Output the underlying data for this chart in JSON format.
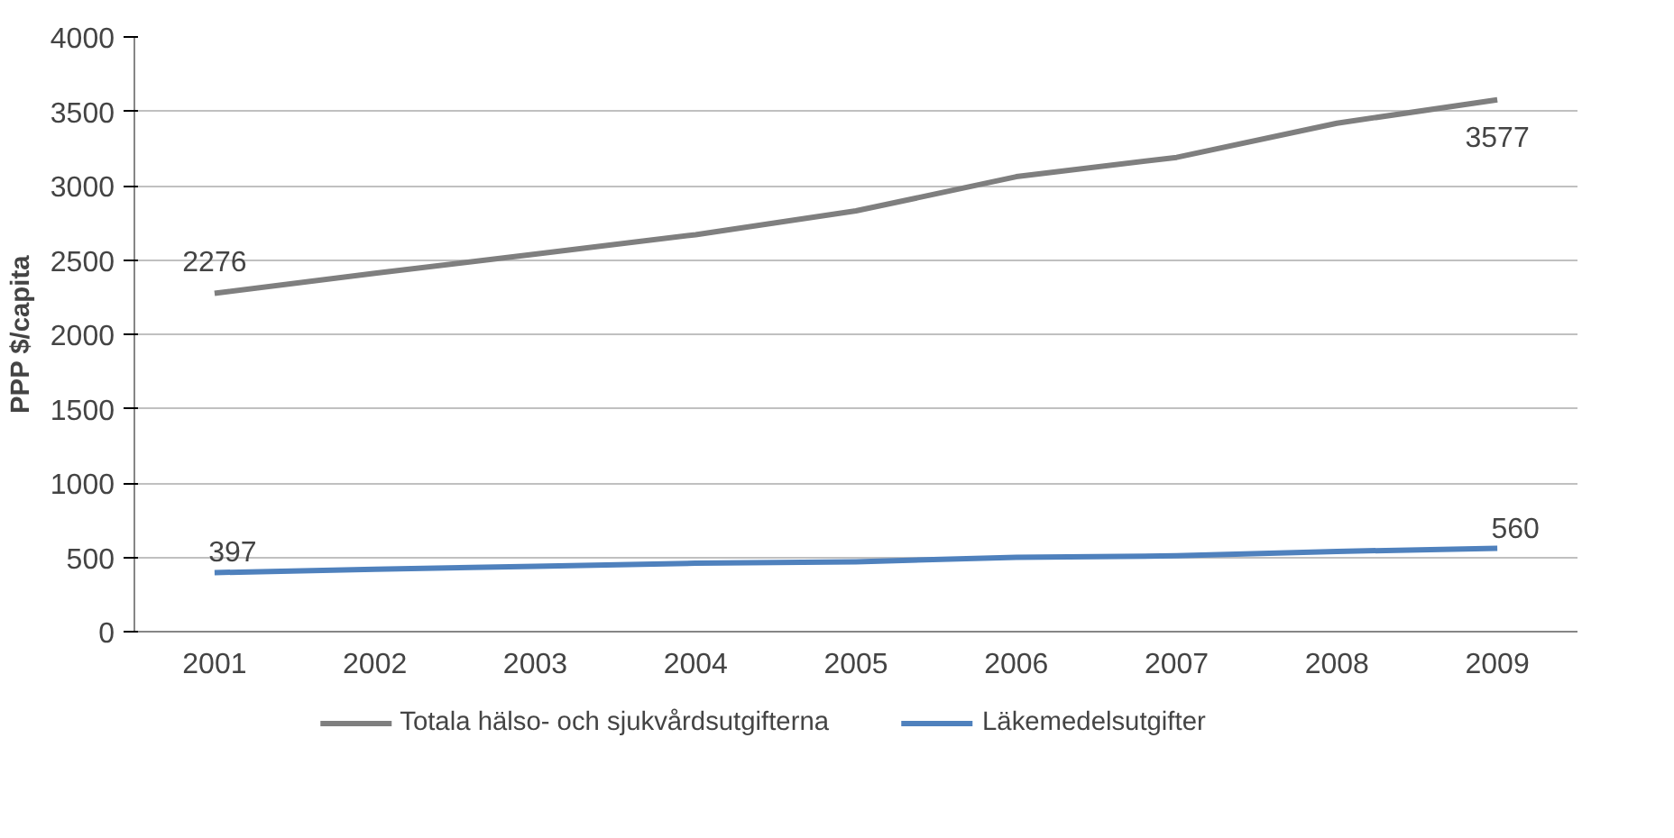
{
  "chart_data": {
    "type": "line",
    "ylabel": "PPP $/capita",
    "categories": [
      "2001",
      "2002",
      "2003",
      "2004",
      "2005",
      "2006",
      "2007",
      "2008",
      "2009"
    ],
    "series": [
      {
        "name": "Totala hälso- och sjukvårdsutgifterna",
        "color": "#7f7f7f",
        "values": [
          2276,
          2410,
          2540,
          2670,
          2830,
          3060,
          3190,
          3420,
          3577
        ],
        "value_labels": [
          "2276",
          null,
          null,
          null,
          null,
          null,
          null,
          null,
          "3577"
        ]
      },
      {
        "name": "Läkemedelsutgifter",
        "color": "#4f81bd",
        "values": [
          397,
          420,
          440,
          460,
          470,
          500,
          510,
          540,
          560
        ],
        "value_labels": [
          "397",
          null,
          null,
          null,
          null,
          null,
          null,
          null,
          "560"
        ]
      }
    ],
    "ylim": [
      0,
      4000
    ],
    "yticks": [
      0,
      500,
      1000,
      1500,
      2000,
      2500,
      3000,
      3500,
      4000
    ],
    "grid": "y",
    "legend": "bottom",
    "marker": "none",
    "line_style": "solid"
  }
}
